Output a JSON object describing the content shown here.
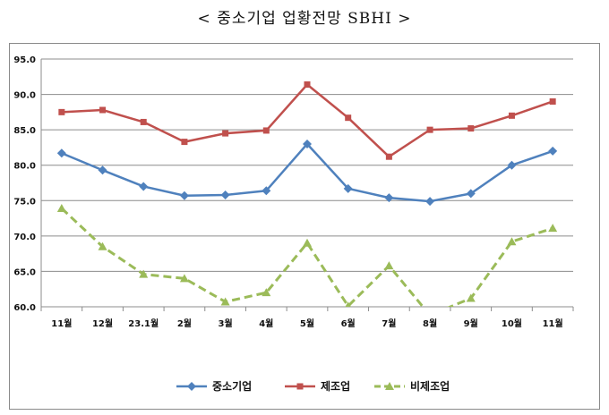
{
  "title": "< 중소기업 업황전망 SBHI >",
  "chart_data": {
    "type": "line",
    "categories": [
      "11월",
      "12월",
      "23.1월",
      "2월",
      "3월",
      "4월",
      "5월",
      "6월",
      "7월",
      "8월",
      "9월",
      "10월",
      "11월"
    ],
    "ylim": [
      60,
      95
    ],
    "yticks": [
      "60.0",
      "65.0",
      "70.0",
      "75.0",
      "80.0",
      "85.0",
      "90.0",
      "95.0"
    ],
    "grid": true,
    "legend_position": "bottom",
    "series": [
      {
        "name": "중소기업",
        "color": "#4f81bd",
        "marker": "diamond",
        "dash": "solid",
        "values": [
          81.7,
          79.3,
          77.0,
          75.7,
          75.8,
          76.4,
          83.0,
          76.7,
          75.4,
          74.9,
          76.0,
          80.0,
          82.0
        ]
      },
      {
        "name": "제조업",
        "color": "#c0504d",
        "marker": "square",
        "dash": "solid",
        "values": [
          87.5,
          87.8,
          86.1,
          83.3,
          84.5,
          84.9,
          91.4,
          86.7,
          81.2,
          85.0,
          85.2,
          87.0,
          89.0
        ]
      },
      {
        "name": "비제조업",
        "color": "#9bbb59",
        "marker": "triangle",
        "dash": "dashed",
        "values": [
          73.9,
          68.5,
          64.6,
          64.0,
          60.7,
          62.0,
          69.0,
          60.1,
          65.8,
          58.8,
          61.2,
          69.2,
          71.1
        ]
      }
    ]
  }
}
